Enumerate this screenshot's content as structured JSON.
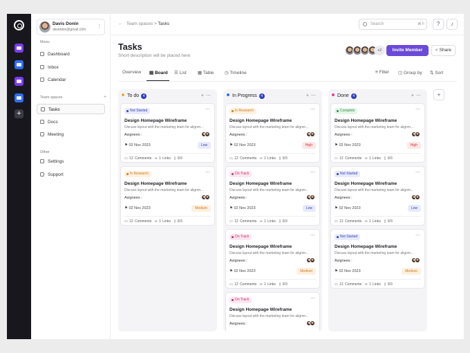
{
  "breadcrumb": {
    "parent": "Team spaces",
    "separator": ">",
    "current": "Tasks"
  },
  "user": {
    "name": "Davis Donin",
    "email": "daviddon@gmail.c0m"
  },
  "sidebar": {
    "menu_title": "Menu",
    "menu": [
      {
        "label": "Dashboard",
        "icon": "home-icon"
      },
      {
        "label": "Inbox",
        "icon": "inbox-icon"
      },
      {
        "label": "Calendar",
        "icon": "calendar-icon"
      }
    ],
    "teamspaces_title": "Team spaces",
    "teamspaces": [
      {
        "label": "Tasks",
        "icon": "tasks-icon",
        "active": true
      },
      {
        "label": "Docs",
        "icon": "docs-icon"
      },
      {
        "label": "Meeting",
        "icon": "people-icon"
      }
    ],
    "other_title": "Other",
    "other": [
      {
        "label": "Settings",
        "icon": "gear-icon"
      },
      {
        "label": "Support",
        "icon": "support-icon"
      }
    ]
  },
  "rail": {
    "workspaces": [
      "#7b3cf0",
      "#2f6df6",
      "#7b3cf0",
      "#2f6df6"
    ],
    "add": "+"
  },
  "search": {
    "placeholder": "Search",
    "shortcut": "⌘ F"
  },
  "page": {
    "title": "Tasks",
    "description": "Short description will be placed here",
    "members_more": "+2",
    "invite_label": "Invite Member",
    "share_label": "Share"
  },
  "tabs": [
    {
      "label": "Overview"
    },
    {
      "label": "Board",
      "active": true
    },
    {
      "label": "List"
    },
    {
      "label": "Table"
    },
    {
      "label": "Timeline"
    }
  ],
  "actions": [
    {
      "label": "Filter"
    },
    {
      "label": "Group by"
    },
    {
      "label": "Sort"
    }
  ],
  "colors": {
    "accent": "#6a4ad6",
    "todo": "#f0a33a",
    "inprogress": "#2f6df6",
    "done": "#e23d8f",
    "count": "#2d3fc5"
  },
  "columns": [
    {
      "title": "To do",
      "count": "4",
      "cards": [
        {
          "status": "Not Started",
          "title": "Design Homepage Wireframe",
          "desc": "Discuss layout with the marketing team for alignm...",
          "assignees": "Asignees :",
          "date": "02 Nov 2023",
          "priority": "Low",
          "comments": "12 Comments",
          "links": "1 Links",
          "files": "0/3"
        },
        {
          "status": "In Research",
          "title": "Design Homepage Wireframe",
          "desc": "Discuss layout with the marketing team for alignm...",
          "assignees": "Asignees :",
          "date": "02 Nov 2023",
          "priority": "Medium",
          "comments": "12 Comments",
          "links": "1 Links",
          "files": "0/3"
        }
      ]
    },
    {
      "title": "In Progress",
      "count": "4",
      "cards": [
        {
          "status": "In Research",
          "title": "Design Homepage Wireframe",
          "desc": "Discuss layout with the marketing team for alignm...",
          "assignees": "Asignees :",
          "date": "02 Nov 2023",
          "priority": "High",
          "comments": "12 Comments",
          "links": "1 Links",
          "files": "0/3"
        },
        {
          "status": "On Track",
          "title": "Design Homepage Wireframe",
          "desc": "Discuss layout with the marketing team for alignm...",
          "assignees": "Asignees :",
          "date": "02 Nov 2023",
          "priority": "Low",
          "comments": "12 Comments",
          "links": "1 Links",
          "files": "0/3"
        },
        {
          "status": "On Track",
          "title": "Design Homepage Wireframe",
          "desc": "Discuss layout with the marketing team for alignm...",
          "assignees": "Asignees :",
          "date": "02 Nov 2023",
          "priority": "Medium",
          "comments": "12 Comments",
          "links": "1 Links",
          "files": "0/3"
        },
        {
          "status": "On Track",
          "title": "Design Homepage Wireframe",
          "desc": "Discuss layout with the marketing team for alignm...",
          "assignees": "Asignees :",
          "date": "",
          "priority": "",
          "comments": "",
          "links": "",
          "files": ""
        }
      ]
    },
    {
      "title": "Done",
      "count": "4",
      "cards": [
        {
          "status": "Complete",
          "title": "Design Homepage Wireframe",
          "desc": "Discuss layout with the marketing team for alignm...",
          "assignees": "Asignees :",
          "date": "02 Nov 2023",
          "priority": "High",
          "comments": "12 Comments",
          "links": "1 Links",
          "files": "0/3"
        },
        {
          "status": "Not Started",
          "title": "Design Homepage Wireframe",
          "desc": "Discuss layout with the marketing team for alignm...",
          "assignees": "Asignees :",
          "date": "02 Nov 2023",
          "priority": "Low",
          "comments": "12 Comments",
          "links": "1 Links",
          "files": "0/3"
        },
        {
          "status": "Not Started",
          "title": "Design Homepage Wireframe",
          "desc": "Discuss layout with the marketing team for alignm...",
          "assignees": "Asignees :",
          "date": "02 Nov 2023",
          "priority": "Medium",
          "comments": "12 Comments",
          "links": "1 Links",
          "files": "0/3"
        }
      ]
    }
  ]
}
